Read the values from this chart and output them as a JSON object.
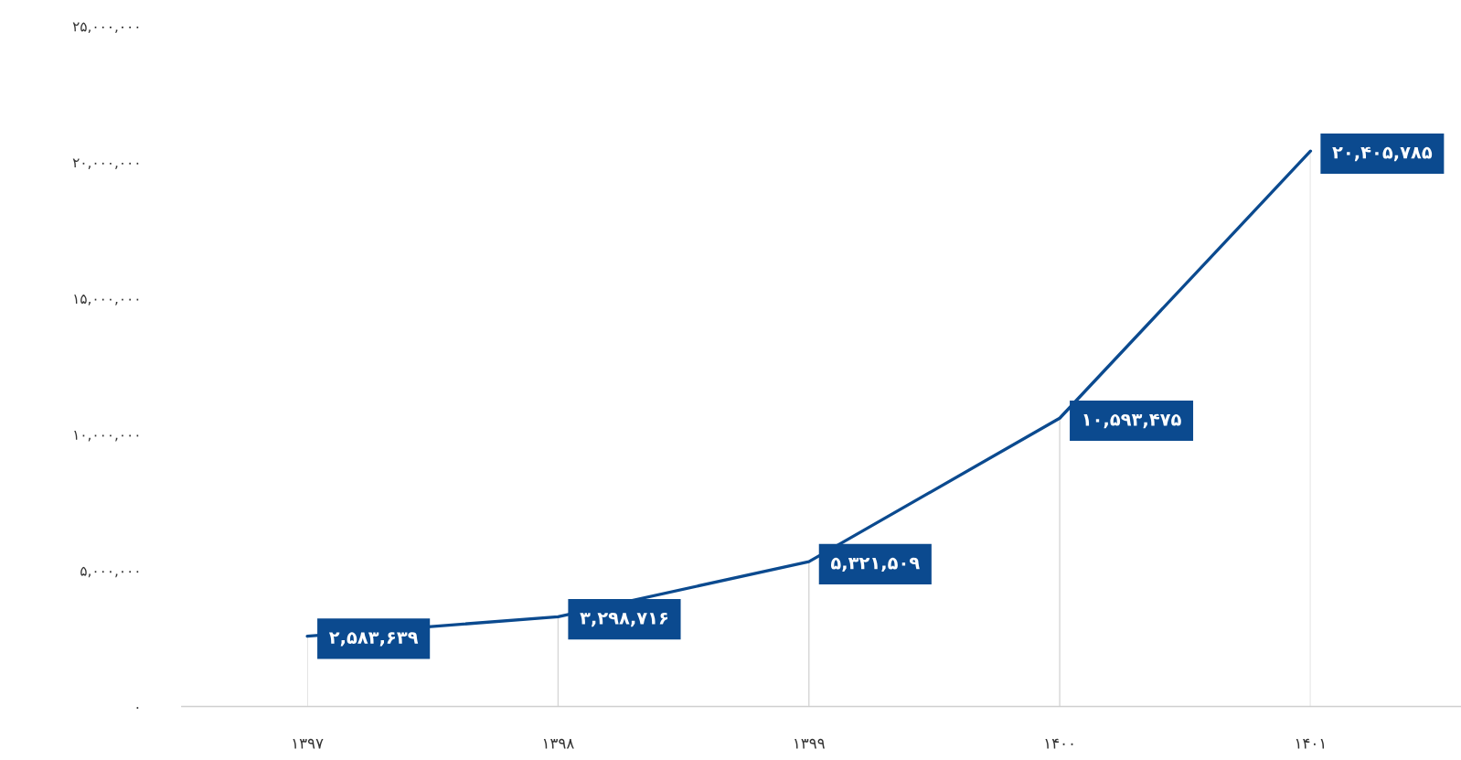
{
  "chart_data": {
    "type": "line",
    "categories": [
      "۱۳۹۷",
      "۱۳۹۸",
      "۱۳۹۹",
      "۱۴۰۰",
      "۱۴۰۱"
    ],
    "series": [
      {
        "color": "#0b4a8f",
        "values": [
          2583639,
          3298716,
          5321509,
          10593475,
          20405785
        ],
        "value_labels": [
          "۲,۵۸۳,۶۳۹",
          "۳,۲۹۸,۷۱۶",
          "۵,۳۲۱,۵۰۹",
          "۱۰,۵۹۳,۴۷۵",
          "۲۰,۴۰۵,۷۸۵"
        ]
      }
    ],
    "ylim": [
      0,
      25000000
    ],
    "yticks": [
      {
        "value": 0,
        "label": "۰"
      },
      {
        "value": 5000000,
        "label": "۵,۰۰۰,۰۰۰"
      },
      {
        "value": 10000000,
        "label": "۱۰,۰۰۰,۰۰۰"
      },
      {
        "value": 15000000,
        "label": "۱۵,۰۰۰,۰۰۰"
      },
      {
        "value": 20000000,
        "label": "۲۰,۰۰۰,۰۰۰"
      },
      {
        "value": 25000000,
        "label": "۲۵,۰۰۰,۰۰۰"
      }
    ],
    "grid": "x"
  }
}
